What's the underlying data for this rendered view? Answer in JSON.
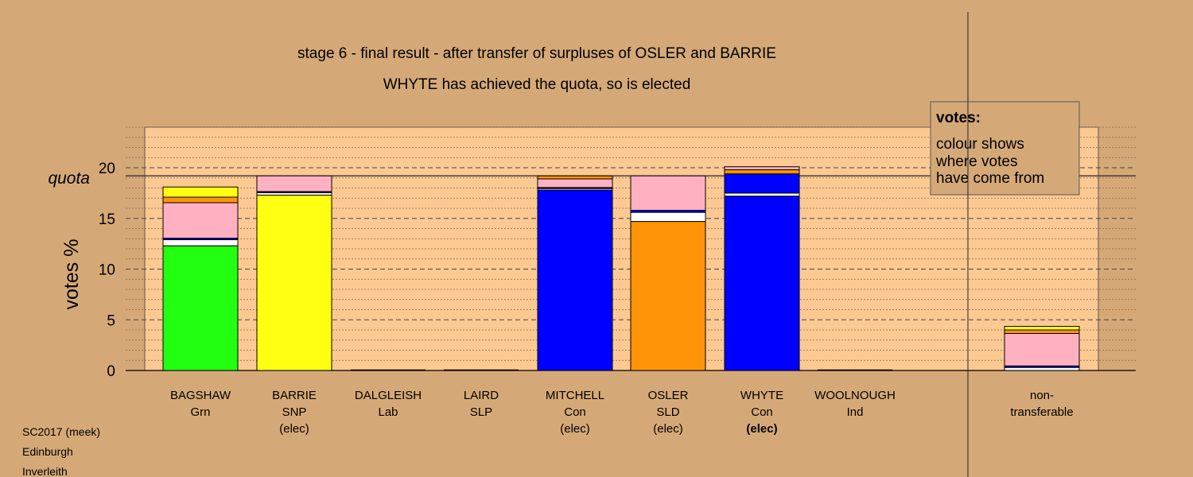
{
  "chart_data": {
    "type": "bar",
    "title": "stage 6 - final result - after transfer of surpluses of OSLER and BARRIE",
    "subtitle": "WHYTE has achieved the quota, so is elected",
    "ylabel": "votes %",
    "ylim": [
      0,
      24
    ],
    "yticks": [
      0,
      5,
      10,
      15,
      20
    ],
    "quota": 19.2,
    "quota_label": "quota",
    "grid": true,
    "legend": {
      "placement": "top-right",
      "heading": "votes:",
      "lines": [
        "colour shows",
        "where votes",
        "have come from"
      ]
    },
    "colors": {
      "Grn": "#22ff11",
      "SNP": "#ffff11",
      "Con": "#0000ff",
      "SLD": "#ff9408",
      "Lab": "#ffb1c1",
      "Ind": "#ffffff",
      "SLP": "#ffffff"
    },
    "candidates": [
      {
        "name": "BAGSHAW",
        "party": "Grn",
        "status": "",
        "segments": [
          {
            "from": "Grn",
            "value": 12.3
          },
          {
            "from": "Ind",
            "value": 0.6
          },
          {
            "from": "Con",
            "value": 0.15
          },
          {
            "from": "Lab",
            "value": 3.5
          },
          {
            "from": "SLD",
            "value": 0.55
          },
          {
            "from": "SNP",
            "value": 1.0
          }
        ]
      },
      {
        "name": "BARRIE",
        "party": "SNP",
        "status": "(elec)",
        "segments": [
          {
            "from": "SNP",
            "value": 17.3
          },
          {
            "from": "Ind",
            "value": 0.25
          },
          {
            "from": "Con",
            "value": 0.1
          },
          {
            "from": "Lab",
            "value": 1.55
          }
        ]
      },
      {
        "name": "DALGLEISH",
        "party": "Lab",
        "status": "",
        "segments": []
      },
      {
        "name": "LAIRD",
        "party": "SLP",
        "status": "",
        "segments": []
      },
      {
        "name": "MITCHELL",
        "party": "Con",
        "status": "(elec)",
        "segments": [
          {
            "from": "Con",
            "value": 17.8
          },
          {
            "from": "Ind",
            "value": 0.15
          },
          {
            "from": "Con",
            "value": 0.1
          },
          {
            "from": "Lab",
            "value": 0.85
          },
          {
            "from": "SLD",
            "value": 0.3
          }
        ]
      },
      {
        "name": "OSLER",
        "party": "SLD",
        "status": "(elec)",
        "segments": [
          {
            "from": "SLD",
            "value": 14.7
          },
          {
            "from": "Ind",
            "value": 0.9
          },
          {
            "from": "Con",
            "value": 0.2
          },
          {
            "from": "Lab",
            "value": 3.4
          }
        ]
      },
      {
        "name": "WHYTE",
        "party": "Con",
        "status": "(elec)",
        "segments": [
          {
            "from": "Con",
            "value": 17.2
          },
          {
            "from": "Ind",
            "value": 0.3
          },
          {
            "from": "Con",
            "value": 1.9
          },
          {
            "from": "SLD",
            "value": 0.4
          },
          {
            "from": "Lab",
            "value": 0.3
          }
        ]
      },
      {
        "name": "WOOLNOUGH",
        "party": "Ind",
        "status": "",
        "segments": []
      }
    ],
    "nontransferable": {
      "label": [
        "non-",
        "transferable"
      ],
      "segments": [
        {
          "from": "Ind",
          "value": 0.3
        },
        {
          "from": "Con",
          "value": 0.15
        },
        {
          "from": "Lab",
          "value": 3.2
        },
        {
          "from": "SLD",
          "value": 0.35
        },
        {
          "from": "SNP",
          "value": 0.35
        }
      ]
    }
  },
  "footer": [
    "SC2017 (meek)",
    "Edinburgh",
    "Inverleith"
  ]
}
